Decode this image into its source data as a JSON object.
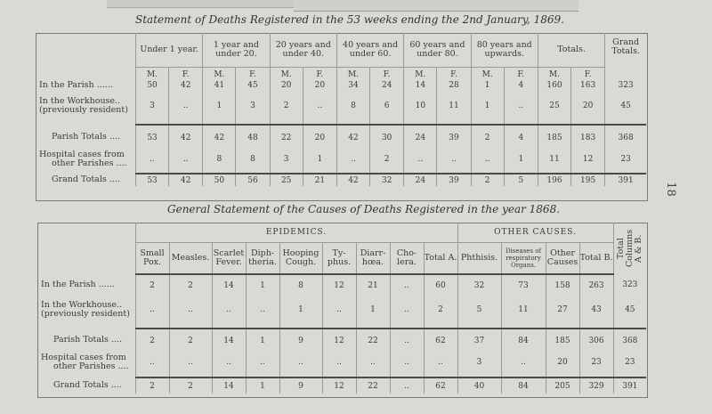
{
  "page_number": "18",
  "table1": {
    "title": "Statement of Deaths Registered in the 53 weeks ending the 2nd January, 1869.",
    "groups": [
      "Under 1 year.",
      "1 year and under 20.",
      "20 years and under 40.",
      "40 years and under 60.",
      "60 years and under 80.",
      "80 years and upwards.",
      "Totals.",
      "Grand Totals."
    ],
    "sex_labels": [
      "M.",
      "F.",
      "M.",
      "F.",
      "M.",
      "F.",
      "M.",
      "F.",
      "M.",
      "F.",
      "M.",
      "F.",
      "M.",
      "F."
    ],
    "rows": [
      {
        "label": "In the Parish ......",
        "values": [
          "50",
          "42",
          "41",
          "45",
          "20",
          "20",
          "34",
          "24",
          "14",
          "28",
          "1",
          "4",
          "160",
          "163",
          "323"
        ]
      },
      {
        "label": "In the Workhouse..",
        "label2": "(previously resident)",
        "values": [
          "3",
          "..",
          "1",
          "3",
          "2",
          "..",
          "8",
          "6",
          "10",
          "11",
          "1",
          "..",
          "25",
          "20",
          "45"
        ]
      },
      {
        "label": "Parish Totals ....",
        "values": [
          "53",
          "42",
          "42",
          "48",
          "22",
          "20",
          "42",
          "30",
          "24",
          "39",
          "2",
          "4",
          "185",
          "183",
          "368"
        ]
      },
      {
        "label": "Hospital cases from",
        "label2": "other Parishes ....",
        "values": [
          "..",
          "..",
          "8",
          "8",
          "3",
          "1",
          "..",
          "2",
          "..",
          "..",
          "..",
          "1",
          "11",
          "12",
          "23"
        ]
      },
      {
        "label": "Grand Totals ....",
        "values": [
          "53",
          "42",
          "50",
          "56",
          "25",
          "21",
          "42",
          "32",
          "24",
          "39",
          "2",
          "5",
          "196",
          "195",
          "391"
        ]
      }
    ]
  },
  "table2": {
    "title": "General Statement of the Causes of Deaths Registered in the year 1868.",
    "group_epidemics": "EPIDEMICS.",
    "group_other": "OTHER CAUSES.",
    "columns": [
      "Small Pox.",
      "Measles.",
      "Scarlet Fever.",
      "Diph- theria.",
      "Hooping Cough.",
      "Ty- phus.",
      "Diarr- hœa.",
      "Cho- lera.",
      "Total A.",
      "Phthisis.",
      "Diseases of respiratory Organs.",
      "Other Causes",
      "Total B.",
      "Total Columns A & B."
    ],
    "rows": [
      {
        "label": "In the Parish ......",
        "values": [
          "2",
          "2",
          "14",
          "1",
          "8",
          "12",
          "21",
          "..",
          "60",
          "32",
          "73",
          "158",
          "263",
          "323"
        ]
      },
      {
        "label": "In the Workhouse..",
        "label2": "(previously resident)",
        "values": [
          "..",
          "..",
          "..",
          "..",
          "1",
          "..",
          "1",
          "..",
          "2",
          "5",
          "11",
          "27",
          "43",
          "45"
        ]
      },
      {
        "label": "Parish Totals ....",
        "values": [
          "2",
          "2",
          "14",
          "1",
          "9",
          "12",
          "22",
          "..",
          "62",
          "37",
          "84",
          "185",
          "306",
          "368"
        ]
      },
      {
        "label": "Hospital cases from",
        "label2": "other Parishes ....",
        "values": [
          "..",
          "..",
          "..",
          "..",
          "..",
          "..",
          "..",
          "..",
          "..",
          "3",
          "..",
          "20",
          "23",
          "23"
        ]
      },
      {
        "label": "Grand Totals ....",
        "values": [
          "2",
          "2",
          "14",
          "1",
          "9",
          "12",
          "22",
          "..",
          "62",
          "40",
          "84",
          "205",
          "329",
          "391"
        ]
      }
    ]
  }
}
